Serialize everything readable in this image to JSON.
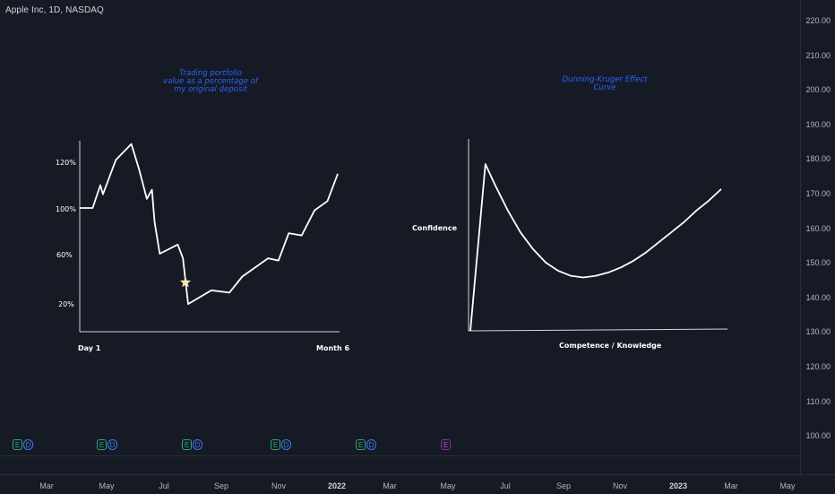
{
  "header": {
    "symbol_title": "Apple Inc, 1D, NASDAQ"
  },
  "price_axis": {
    "labels": [
      "220.00",
      "210.00",
      "200.00",
      "190.00",
      "180.00",
      "170.00",
      "160.00",
      "150.00",
      "140.00",
      "130.00",
      "120.00",
      "110.00",
      "100.00"
    ]
  },
  "time_axis": {
    "labels": [
      {
        "text": "Mar",
        "year": false
      },
      {
        "text": "May",
        "year": false
      },
      {
        "text": "Jul",
        "year": false
      },
      {
        "text": "Sep",
        "year": false
      },
      {
        "text": "Nov",
        "year": false
      },
      {
        "text": "2022",
        "year": true
      },
      {
        "text": "Mar",
        "year": false
      },
      {
        "text": "May",
        "year": false
      },
      {
        "text": "Jul",
        "year": false
      },
      {
        "text": "Sep",
        "year": false
      },
      {
        "text": "Nov",
        "year": false
      },
      {
        "text": "2023",
        "year": true
      },
      {
        "text": "Mar",
        "year": false
      },
      {
        "text": "May",
        "year": false
      }
    ]
  },
  "events": [
    {
      "badges": [
        "E",
        "D"
      ]
    },
    {
      "badges": [
        "E",
        "D"
      ]
    },
    {
      "badges": [
        "E",
        "D"
      ]
    },
    {
      "badges": [
        "E",
        "D"
      ]
    },
    {
      "badges": [
        "E",
        "D"
      ]
    },
    {
      "badges": [
        "E"
      ]
    }
  ],
  "colors": {
    "background": "#161a25",
    "annotation_blue": "#2962ff",
    "drawing_white": "#ffffff",
    "star": "#f5e6b0",
    "earnings_green": "#2aa879",
    "dividend_blue": "#3d7af5",
    "event_purple": "#9c27b0"
  },
  "chart_data": [
    {
      "type": "line",
      "title": "Trading portfolio value as a percentage of my original deposit",
      "title_lines": [
        "Trading portfolio",
        "value as a percentage of",
        "my original deposit"
      ],
      "x_start_label": "Day 1",
      "x_end_label": "Month 6",
      "y_ticks": [
        "120%",
        "100%",
        "60%",
        "20%"
      ],
      "marker": "star",
      "points": [
        [
          0,
          100
        ],
        [
          5,
          100
        ],
        [
          8,
          110
        ],
        [
          9,
          106
        ],
        [
          14,
          121
        ],
        [
          20,
          128
        ],
        [
          23,
          117
        ],
        [
          26,
          104
        ],
        [
          28,
          108
        ],
        [
          29,
          94
        ],
        [
          31,
          80
        ],
        [
          38,
          84
        ],
        [
          40,
          78
        ],
        [
          42,
          58
        ],
        [
          51,
          64
        ],
        [
          58,
          63
        ],
        [
          63,
          70
        ],
        [
          73,
          78
        ],
        [
          77,
          77
        ],
        [
          81,
          89
        ],
        [
          86,
          88
        ],
        [
          91,
          99
        ],
        [
          96,
          103
        ],
        [
          100,
          115
        ]
      ]
    },
    {
      "type": "line",
      "title": "Dunning-Kruger Effect Curve",
      "title_lines": [
        "Dunning-Kruger Effect",
        "Curve"
      ],
      "xlabel": "Competence / Knowledge",
      "ylabel": "Confidence",
      "points": [
        [
          0,
          0
        ],
        [
          6,
          100
        ],
        [
          10,
          87
        ],
        [
          15,
          72
        ],
        [
          20,
          59
        ],
        [
          25,
          49
        ],
        [
          30,
          41
        ],
        [
          35,
          36
        ],
        [
          40,
          33
        ],
        [
          45,
          32
        ],
        [
          50,
          33
        ],
        [
          55,
          35
        ],
        [
          60,
          38
        ],
        [
          65,
          42
        ],
        [
          70,
          47
        ],
        [
          75,
          53
        ],
        [
          80,
          59
        ],
        [
          85,
          65
        ],
        [
          90,
          72
        ],
        [
          95,
          78
        ],
        [
          100,
          85
        ]
      ]
    }
  ]
}
